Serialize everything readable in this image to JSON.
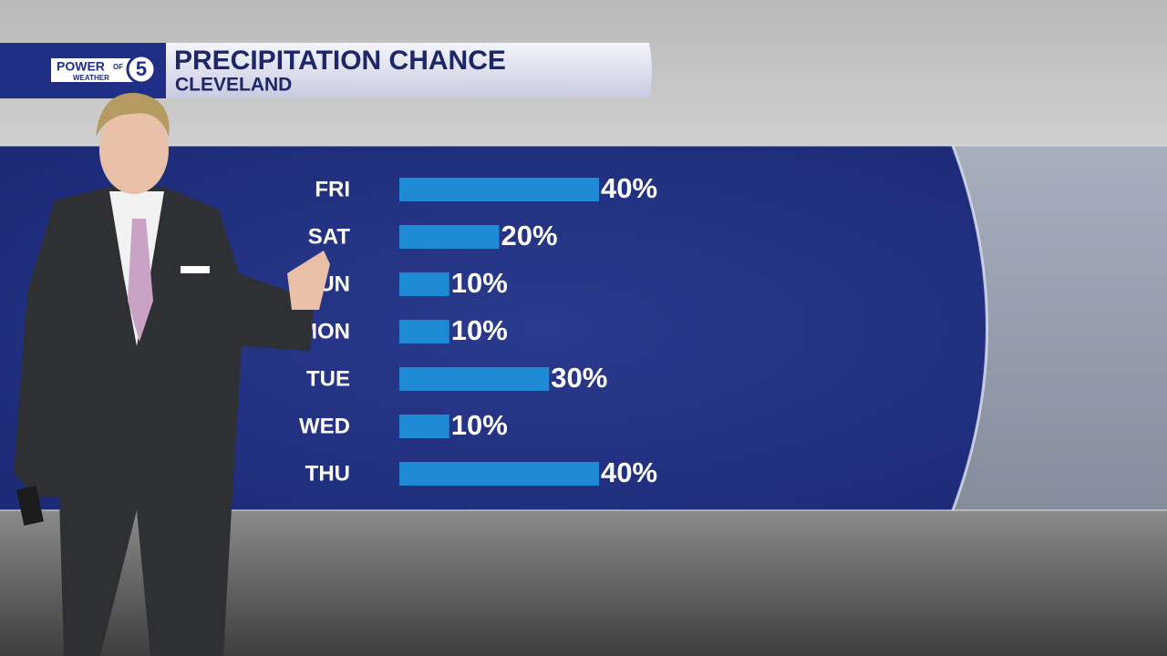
{
  "logo": {
    "brand": "POWER",
    "of": "OF",
    "number": "5",
    "sub": "WEATHER"
  },
  "chart_data": {
    "type": "bar",
    "title": "PRECIPITATION CHANCE",
    "subtitle": "CLEVELAND",
    "categories": [
      "FRI",
      "SAT",
      "SUN",
      "MON",
      "TUE",
      "WED",
      "THU"
    ],
    "values": [
      40,
      20,
      10,
      10,
      30,
      10,
      40
    ],
    "value_labels": [
      "40%",
      "20%",
      "10%",
      "10%",
      "30%",
      "10%",
      "40%"
    ],
    "color": "#1e8ad6"
  }
}
